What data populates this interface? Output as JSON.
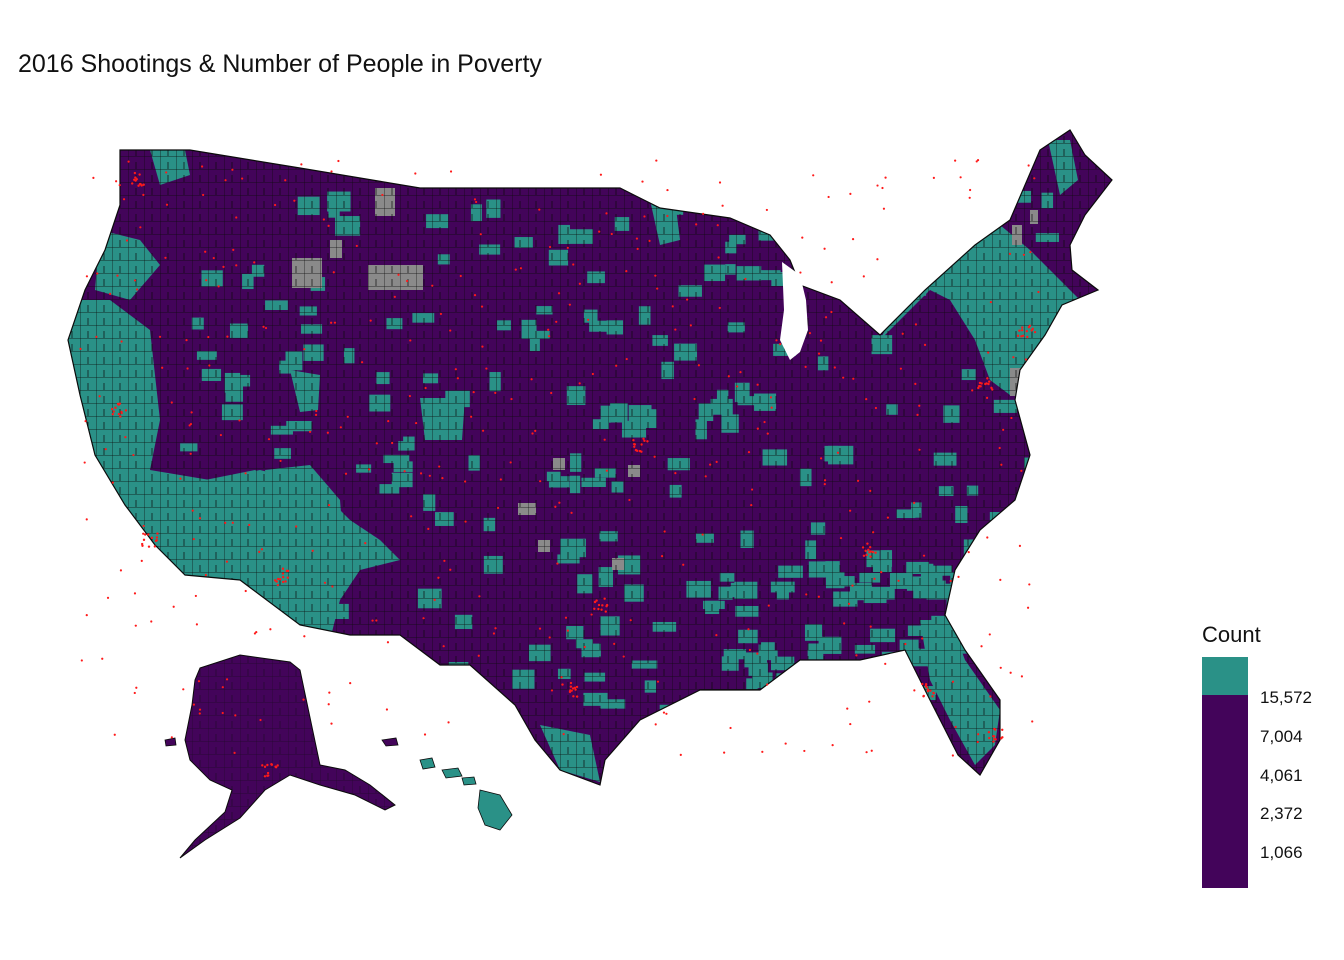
{
  "title": "2016 Shootings & Number of People in Poverty",
  "colors": {
    "high": "#2a9187",
    "low": "#43045a",
    "na": "#8a8a8a",
    "point": "#ff1a1a",
    "border": "#0b0b0b"
  },
  "legend": {
    "title": "Count",
    "labels": [
      "15,572",
      "7,004",
      "4,061",
      "2,372",
      "1,066"
    ]
  }
}
